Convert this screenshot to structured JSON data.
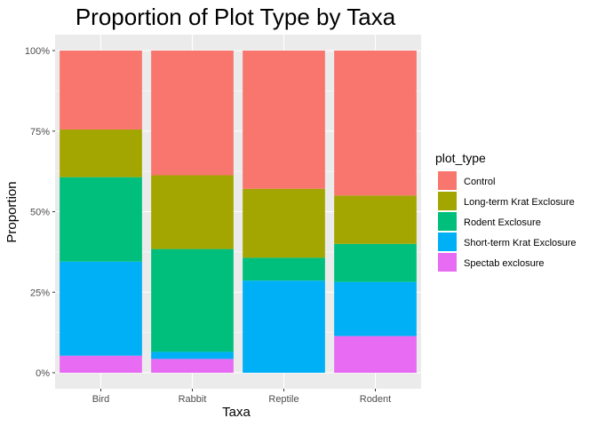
{
  "chart_data": {
    "type": "bar",
    "stacked": true,
    "title": "Proportion of Plot Type by Taxa",
    "xlabel": "Taxa",
    "ylabel": "Proportion",
    "ylim": [
      0,
      1
    ],
    "y_ticks": [
      "0%",
      "25%",
      "50%",
      "75%",
      "100%"
    ],
    "y_tick_values": [
      0,
      0.25,
      0.5,
      0.75,
      1
    ],
    "grid": true,
    "legend_position": "right",
    "legend_title": "plot_type",
    "categories": [
      "Bird",
      "Rabbit",
      "Reptile",
      "Rodent"
    ],
    "series": [
      {
        "name": "Spectab exclosure",
        "color": "#E76BF3",
        "values": [
          0.053,
          0.043,
          0.0,
          0.114
        ]
      },
      {
        "name": "Short-term Krat Exclosure",
        "color": "#00B0F6",
        "values": [
          0.292,
          0.022,
          0.286,
          0.168
        ]
      },
      {
        "name": "Rodent Exclosure",
        "color": "#00BF7D",
        "values": [
          0.262,
          0.319,
          0.071,
          0.118
        ]
      },
      {
        "name": "Long-term Krat Exclosure",
        "color": "#A3A500",
        "values": [
          0.148,
          0.229,
          0.214,
          0.15
        ]
      },
      {
        "name": "Control",
        "color": "#F8766D",
        "values": [
          0.245,
          0.387,
          0.429,
          0.45
        ]
      }
    ],
    "legend_order": [
      "Control",
      "Long-term Krat Exclosure",
      "Rodent Exclosure",
      "Short-term Krat Exclosure",
      "Spectab exclosure"
    ]
  }
}
